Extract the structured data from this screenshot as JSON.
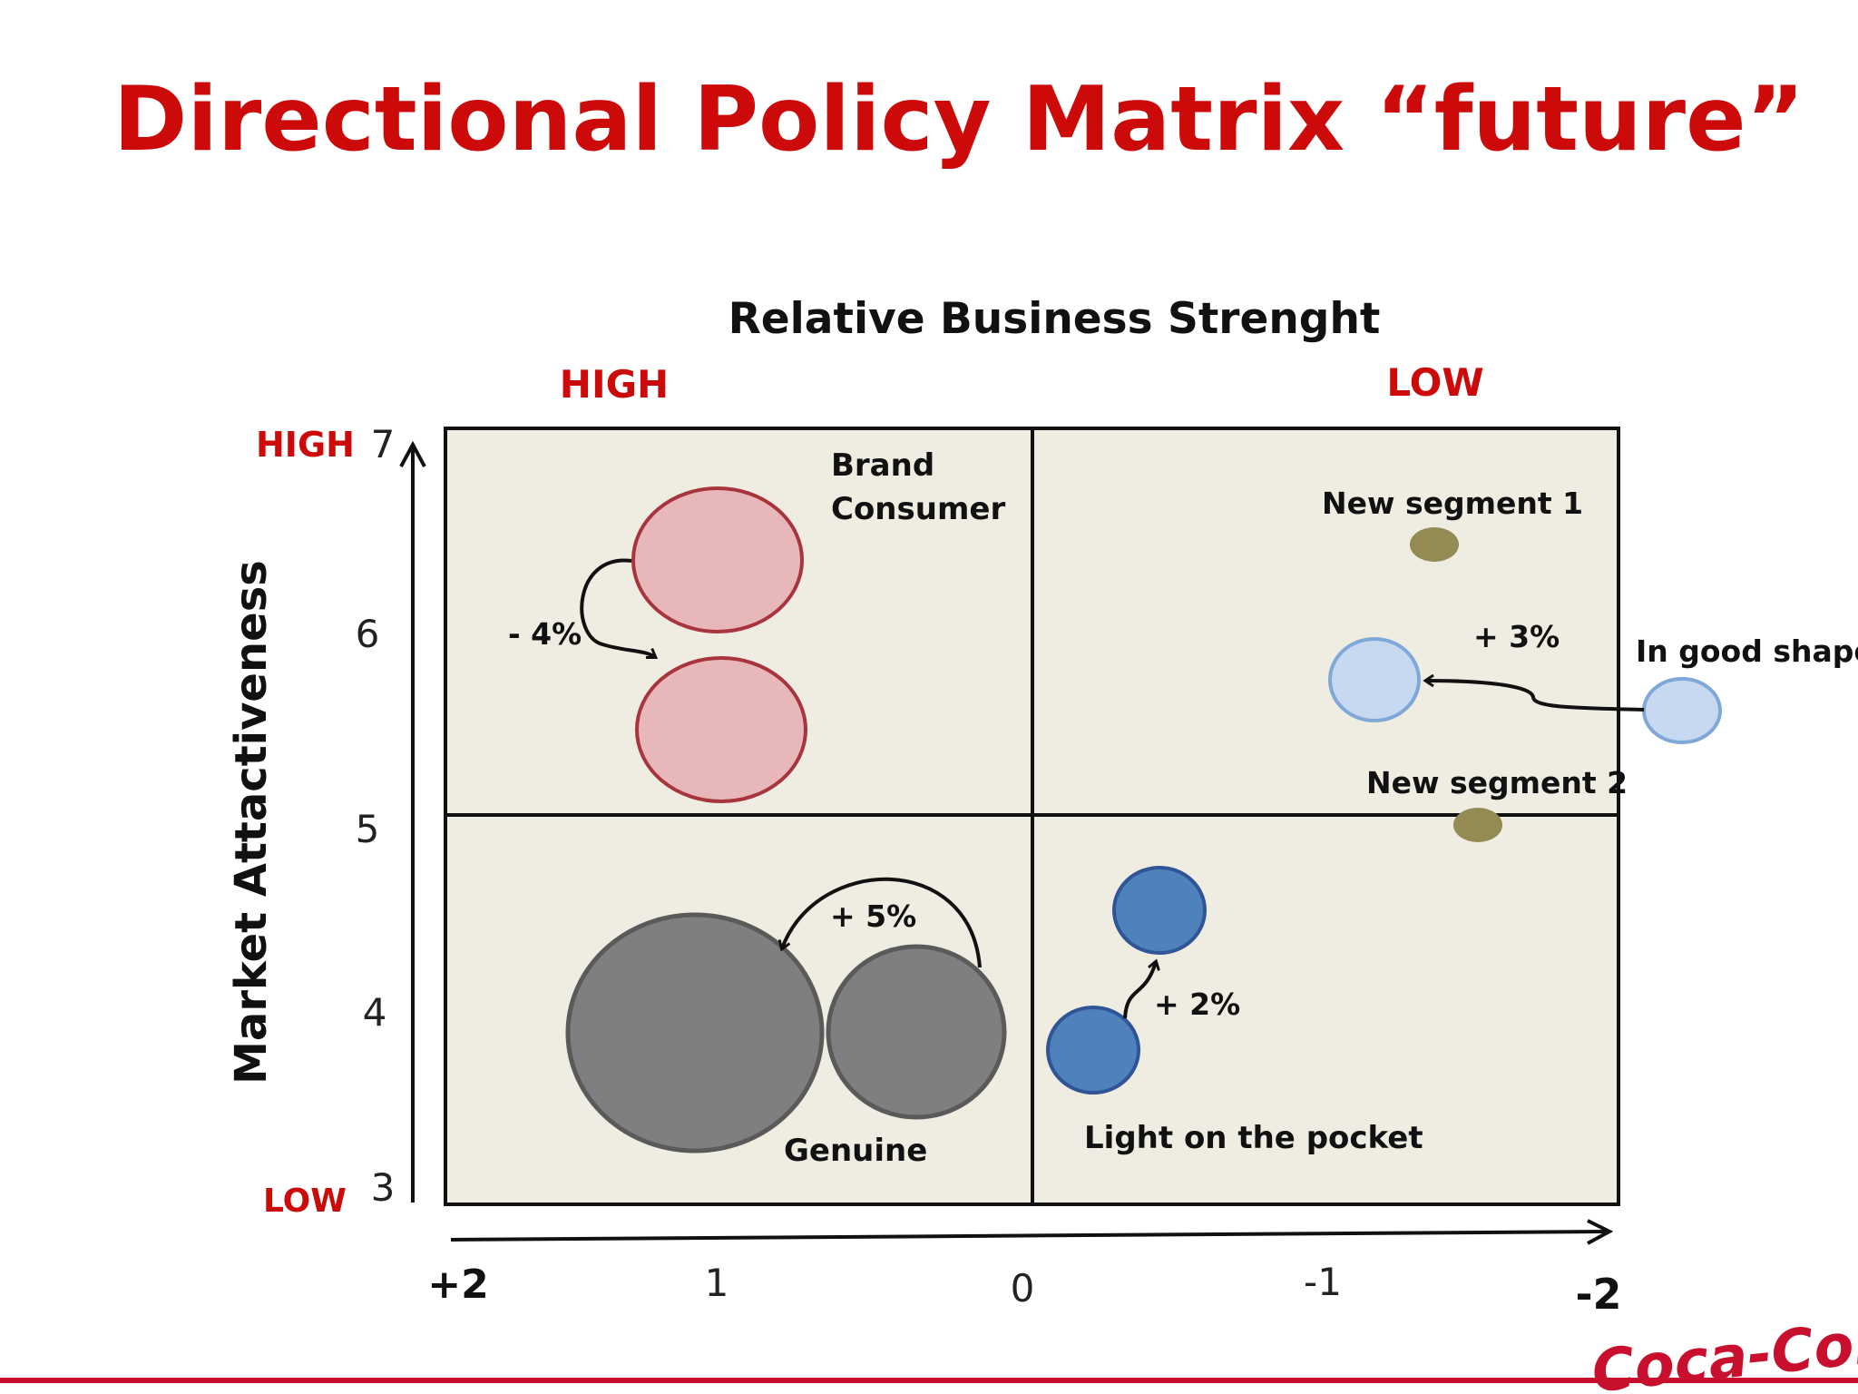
{
  "slide": {
    "title": "Directional Policy Matrix “future”",
    "brand_logo_text": "Coca-Cola",
    "colors": {
      "title": "#cc0a0a",
      "accent_line": "#c8102e",
      "matrix_fill": "#efece1",
      "bubble_brand_fill": "#e8b7b9",
      "bubble_brand_stroke": "#a8353d",
      "bubble_genuine_fill": "#7f7f7f",
      "bubble_genuine_stroke": "#5a5a5a",
      "bubble_light_fill": "#4f81bd",
      "bubble_light_stroke": "#2f5596",
      "bubble_shape_fill": "#c6d9f1",
      "bubble_shape_stroke": "#7fa7d8",
      "bubble_segment_fill": "#948a54"
    }
  },
  "axes": {
    "x_title": "Relative Business Strenght",
    "x_high": "HIGH",
    "x_low": "LOW",
    "x_ticks": [
      "+2",
      "1",
      "0",
      "-1",
      "-2"
    ],
    "y_title": "Market Attactiveness",
    "y_high": "HIGH",
    "y_low": "LOW",
    "y_ticks": [
      "7",
      "6",
      "5",
      "4",
      "3"
    ]
  },
  "labels": {
    "brand_line1": "Brand",
    "brand_line2": "Consumer",
    "brand_change": "- 4%",
    "genuine": "Genuine",
    "genuine_change": "+ 5%",
    "light": "Light on the pocket",
    "light_change": "+ 2%",
    "new_segment_1": "New segment 1",
    "new_segment_2": "New segment 2",
    "in_good_shape": "In good shape",
    "shape_change": "+ 3%"
  }
}
